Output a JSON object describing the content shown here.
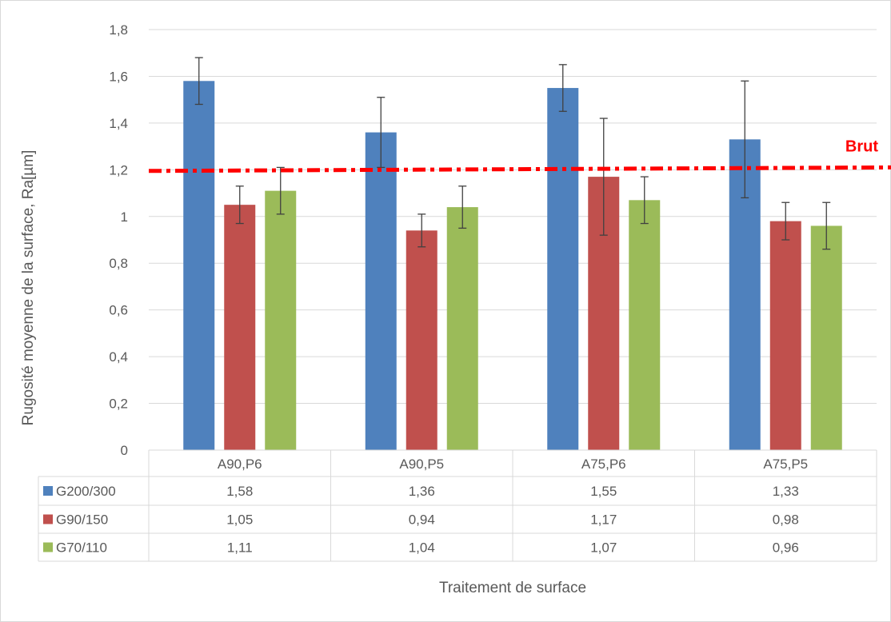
{
  "chart_data": {
    "type": "bar",
    "categories": [
      "A90,P6",
      "A90,P5",
      "A75,P6",
      "A75,P5"
    ],
    "series": [
      {
        "name": "G200/300",
        "color": "#4f81bd",
        "values": [
          1.58,
          1.36,
          1.55,
          1.33
        ],
        "value_labels": [
          "1,58",
          "1,36",
          "1,55",
          "1,33"
        ],
        "error_low": [
          1.48,
          1.21,
          1.45,
          1.08
        ],
        "error_high": [
          1.68,
          1.51,
          1.65,
          1.58
        ]
      },
      {
        "name": "G90/150",
        "color": "#c0504d",
        "values": [
          1.05,
          0.94,
          1.17,
          0.98
        ],
        "value_labels": [
          "1,05",
          "0,94",
          "1,17",
          "0,98"
        ],
        "error_low": [
          0.97,
          0.87,
          0.92,
          0.9
        ],
        "error_high": [
          1.13,
          1.01,
          1.42,
          1.06
        ]
      },
      {
        "name": "G70/110",
        "color": "#9bbb59",
        "values": [
          1.11,
          1.04,
          1.07,
          0.96
        ],
        "value_labels": [
          "1,11",
          "1,04",
          "1,07",
          "0,96"
        ],
        "error_low": [
          1.01,
          0.95,
          0.97,
          0.86
        ],
        "error_high": [
          1.21,
          1.13,
          1.17,
          1.06
        ]
      }
    ],
    "reference_line": {
      "label": "Brut",
      "y_start": 1.195,
      "y_end": 1.21,
      "color": "#ff0000"
    },
    "ylim": [
      0,
      1.8
    ],
    "yticks": [
      0,
      0.2,
      0.4,
      0.6,
      0.8,
      1.0,
      1.2,
      1.4,
      1.6,
      1.8
    ],
    "ytick_labels": [
      "0",
      "0,2",
      "0,4",
      "0,6",
      "0,8",
      "1",
      "1,2",
      "1,4",
      "1,6",
      "1,8"
    ],
    "xlabel": "Traitement de surface",
    "ylabel": "Rugosité moyenne de la surface, Ra[µm]",
    "title": "",
    "grid": true,
    "legend": "data-table-rows"
  }
}
